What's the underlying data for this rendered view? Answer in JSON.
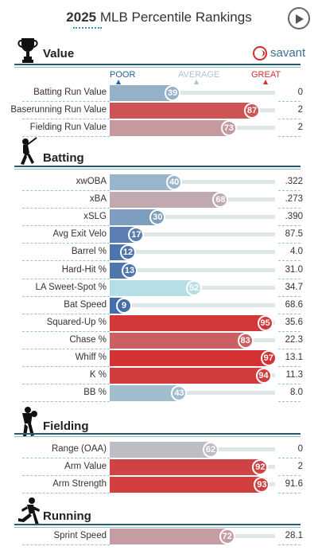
{
  "header": {
    "year": "2025",
    "title": "MLB Percentile Rankings"
  },
  "brand": {
    "name": "savant",
    "ball_color": "#d62e2e"
  },
  "scale": {
    "poor": "POOR",
    "average": "AVERAGE",
    "great": "GREAT",
    "poor_color": "#2d5aa0",
    "average_color": "#a9c6cf",
    "great_color": "#d62e2e"
  },
  "sections": [
    {
      "title": "Value",
      "icon": "trophy-icon"
    },
    {
      "title": "Batting",
      "icon": "batter-icon"
    },
    {
      "title": "Fielding",
      "icon": "fielder-icon"
    },
    {
      "title": "Running",
      "icon": "runner-icon"
    }
  ],
  "chart_data": {
    "type": "bar",
    "title": "2025 MLB Percentile Rankings",
    "xlim": [
      0,
      100
    ],
    "groups": [
      {
        "section": "Value",
        "metrics": [
          {
            "name": "Batting Run Value",
            "percentile": 39,
            "value": "0"
          },
          {
            "name": "Baserunning Run Value",
            "percentile": 87,
            "value": "2"
          },
          {
            "name": "Fielding Run Value",
            "percentile": 73,
            "value": "2"
          }
        ]
      },
      {
        "section": "Batting",
        "metrics": [
          {
            "name": "xwOBA",
            "percentile": 40,
            "value": ".322"
          },
          {
            "name": "xBA",
            "percentile": 68,
            "value": ".273"
          },
          {
            "name": "xSLG",
            "percentile": 30,
            "value": ".390"
          },
          {
            "name": "Avg Exit Velo",
            "percentile": 17,
            "value": "87.5"
          },
          {
            "name": "Barrel %",
            "percentile": 12,
            "value": "4.0"
          },
          {
            "name": "Hard-Hit %",
            "percentile": 13,
            "value": "31.0"
          },
          {
            "name": "LA Sweet-Spot %",
            "percentile": 52,
            "value": "34.7"
          },
          {
            "name": "Bat Speed",
            "percentile": 9,
            "value": "68.6"
          },
          {
            "name": "Squared-Up %",
            "percentile": 95,
            "value": "35.6"
          },
          {
            "name": "Chase %",
            "percentile": 83,
            "value": "22.3"
          },
          {
            "name": "Whiff %",
            "percentile": 97,
            "value": "13.1"
          },
          {
            "name": "K %",
            "percentile": 94,
            "value": "11.3"
          },
          {
            "name": "BB %",
            "percentile": 43,
            "value": "8.0"
          }
        ]
      },
      {
        "section": "Fielding",
        "metrics": [
          {
            "name": "Range (OAA)",
            "percentile": 62,
            "value": "0"
          },
          {
            "name": "Arm Value",
            "percentile": 92,
            "value": "2"
          },
          {
            "name": "Arm Strength",
            "percentile": 93,
            "value": "91.6"
          }
        ]
      },
      {
        "section": "Running",
        "metrics": [
          {
            "name": "Sprint Speed",
            "percentile": 72,
            "value": "28.1"
          }
        ]
      }
    ]
  }
}
